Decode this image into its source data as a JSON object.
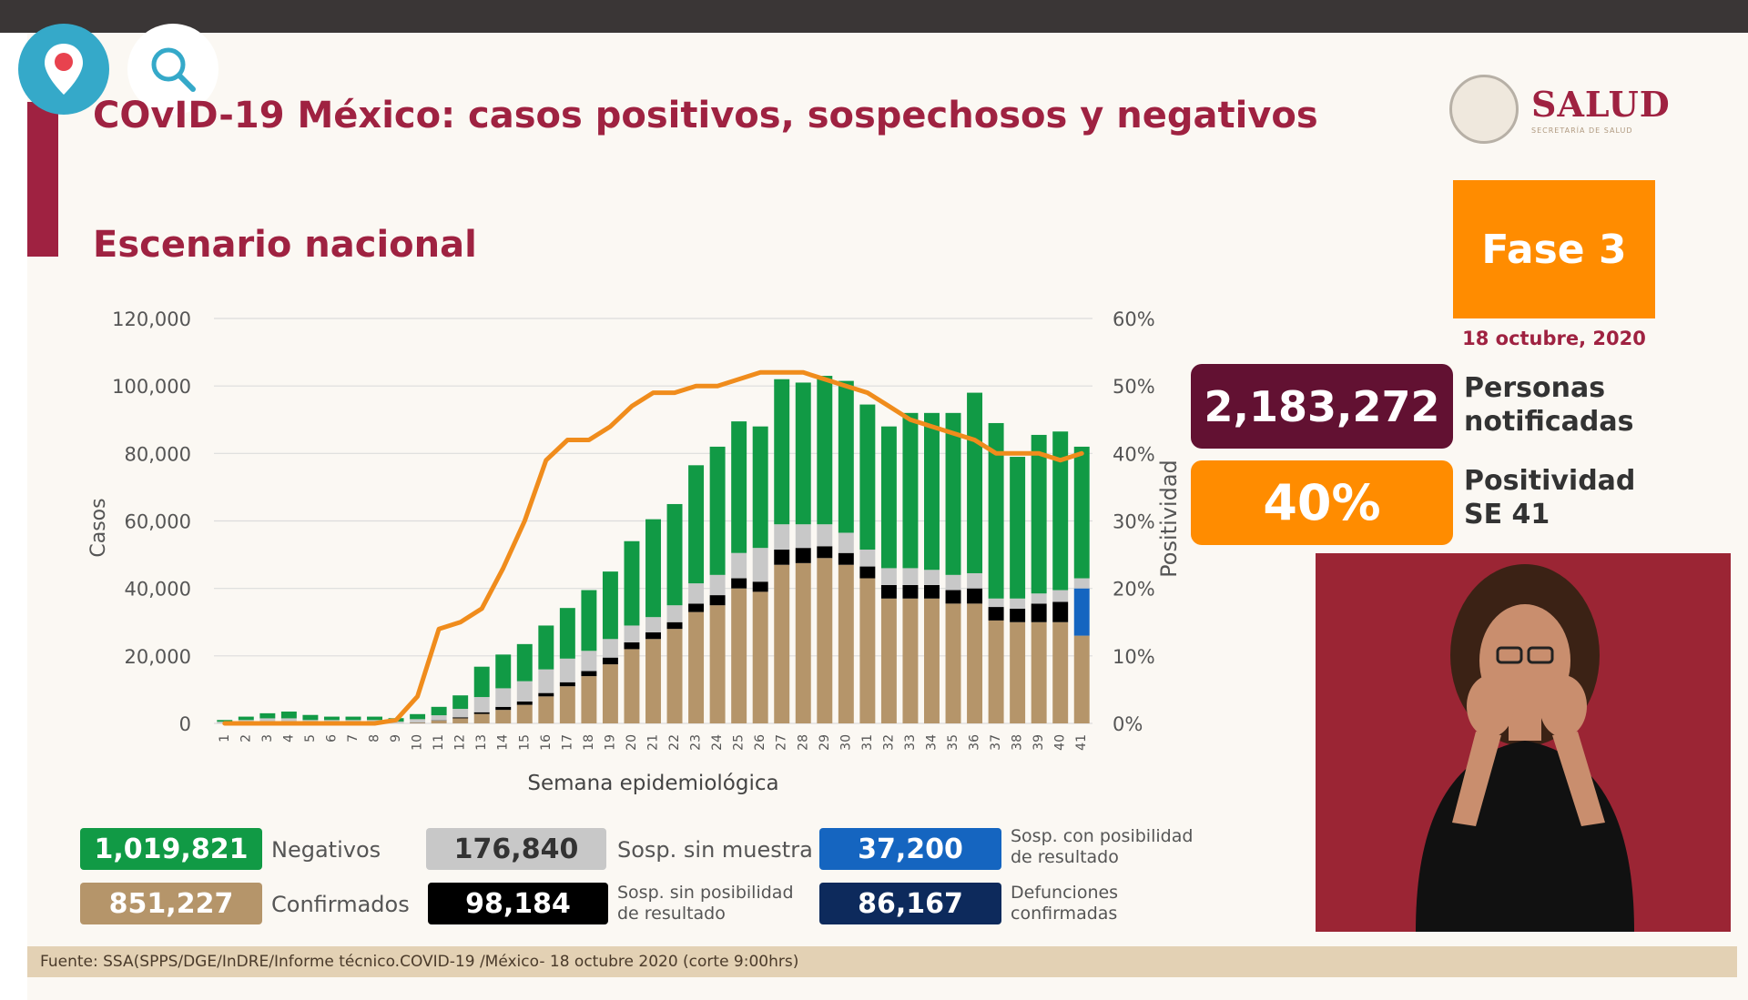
{
  "header": {
    "title": "COvID-19 México: casos positivos, sospechosos y negativos",
    "subtitle": "Escenario nacional"
  },
  "logo": {
    "name": "SALUD",
    "sub": "SECRETARÍA DE SALUD"
  },
  "phase": {
    "label": "Fase 3",
    "date": "18 octubre, 2020"
  },
  "stats": {
    "notified": {
      "value": "2,183,272",
      "label_line1": "Personas",
      "label_line2": "notificadas"
    },
    "positivity": {
      "value": "40%",
      "label_line1": "Positividad",
      "label_line2": "SE 41"
    }
  },
  "legend": {
    "negativos": {
      "value": "1,019,821",
      "label": "Negativos"
    },
    "confirmados": {
      "value": "851,227",
      "label": "Confirmados"
    },
    "sosp_sin_muestra": {
      "value": "176,840",
      "label": "Sosp. sin muestra"
    },
    "sosp_sin_posibilidad": {
      "value": "98,184",
      "label_line1": "Sosp. sin posibilidad",
      "label_line2": "de resultado"
    },
    "sosp_con_posibilidad": {
      "value": "37,200",
      "label_line1": "Sosp. con posibilidad",
      "label_line2": "de resultado"
    },
    "defunciones": {
      "value": "86,167",
      "label_line1": "Defunciones",
      "label_line2": "confirmadas"
    }
  },
  "source": "Fuente: SSA(SPPS/DGE/InDRE/Informe técnico.COVID-19 /México- 18 octubre 2020 (corte 9:00hrs)",
  "colors": {
    "confirmed": "#b5956a",
    "black": "#000000",
    "gray": "#c8c8c8",
    "negative": "#119a45",
    "blue": "#1565c0",
    "line": "#f08c1c",
    "brand": "#9f2241"
  },
  "chart_data": {
    "type": "bar",
    "stacked": true,
    "xlabel": "Semana epidemiológica",
    "ylabel": "Casos",
    "y2label": "Positividad",
    "ylim": [
      0,
      120000
    ],
    "y2lim": [
      0,
      60
    ],
    "yticks": [
      "0",
      "20,000",
      "40,000",
      "60,000",
      "80,000",
      "100,000",
      "120,000"
    ],
    "y2ticks": [
      "0%",
      "10%",
      "20%",
      "30%",
      "40%",
      "50%",
      "60%"
    ],
    "categories": [
      "1",
      "2",
      "3",
      "4",
      "5",
      "6",
      "7",
      "8",
      "9",
      "10",
      "11",
      "12",
      "13",
      "14",
      "15",
      "16",
      "17",
      "18",
      "19",
      "20",
      "21",
      "22",
      "23",
      "24",
      "25",
      "26",
      "27",
      "28",
      "29",
      "30",
      "31",
      "32",
      "33",
      "34",
      "35",
      "36",
      "37",
      "38",
      "39",
      "40",
      "41"
    ],
    "series": [
      {
        "name": "Confirmados",
        "values": [
          0,
          0,
          0,
          0,
          0,
          0,
          0,
          0,
          50,
          200,
          800,
          1500,
          2800,
          4000,
          5500,
          8000,
          11000,
          14000,
          17500,
          22000,
          25000,
          28000,
          33000,
          35000,
          40000,
          39000,
          47000,
          47500,
          49000,
          47000,
          43000,
          37000,
          37000,
          37000,
          35500,
          35500,
          30500,
          30000,
          30000,
          30000,
          26000
        ]
      },
      {
        "name": "Sosp. sin posibilidad de resultado",
        "values": [
          0,
          0,
          0,
          0,
          0,
          0,
          0,
          0,
          0,
          50,
          100,
          300,
          500,
          900,
          1000,
          1000,
          1200,
          1500,
          2000,
          2000,
          2000,
          2000,
          2500,
          3000,
          3000,
          3000,
          4500,
          4500,
          3500,
          3500,
          3500,
          4000,
          4000,
          4000,
          4000,
          4500,
          4000,
          4000,
          5500,
          6000,
          0
        ]
      },
      {
        "name": "Sosp. con posibilidad de resultado",
        "values": [
          0,
          0,
          0,
          0,
          0,
          0,
          0,
          0,
          0,
          0,
          0,
          0,
          0,
          0,
          0,
          0,
          0,
          0,
          0,
          0,
          0,
          0,
          0,
          0,
          0,
          0,
          0,
          0,
          0,
          0,
          0,
          0,
          0,
          0,
          0,
          0,
          0,
          0,
          0,
          0,
          14000
        ]
      },
      {
        "name": "Sosp. sin muestra",
        "values": [
          500,
          1000,
          1500,
          1500,
          1000,
          1000,
          1000,
          1000,
          500,
          1000,
          1500,
          2500,
          4500,
          5500,
          6000,
          7000,
          7000,
          6000,
          5500,
          5000,
          4500,
          5000,
          6000,
          6000,
          7500,
          10000,
          7500,
          7000,
          6500,
          6000,
          5000,
          5000,
          5000,
          4500,
          4500,
          4500,
          2500,
          3000,
          3000,
          3500,
          3000
        ]
      },
      {
        "name": "Negativos",
        "values": [
          500,
          1000,
          1500,
          2000,
          1500,
          1000,
          1000,
          1000,
          1000,
          1500,
          2500,
          4000,
          9000,
          10000,
          11000,
          13000,
          15000,
          18000,
          20000,
          25000,
          29000,
          30000,
          35000,
          38000,
          39000,
          36000,
          43000,
          42000,
          44000,
          45000,
          43000,
          42000,
          46000,
          46500,
          48000,
          53500,
          52000,
          42000,
          47000,
          47000,
          39000
        ]
      }
    ],
    "line": {
      "name": "Positividad",
      "values": [
        0,
        0,
        0,
        0,
        0,
        0,
        0,
        0,
        0.5,
        4,
        14,
        15,
        17,
        23,
        30,
        39,
        42,
        42,
        44,
        47,
        49,
        49,
        50,
        50,
        51,
        52,
        52,
        52,
        51,
        50,
        49,
        47,
        45,
        44,
        43,
        42,
        40,
        40,
        40,
        39,
        40
      ]
    }
  }
}
